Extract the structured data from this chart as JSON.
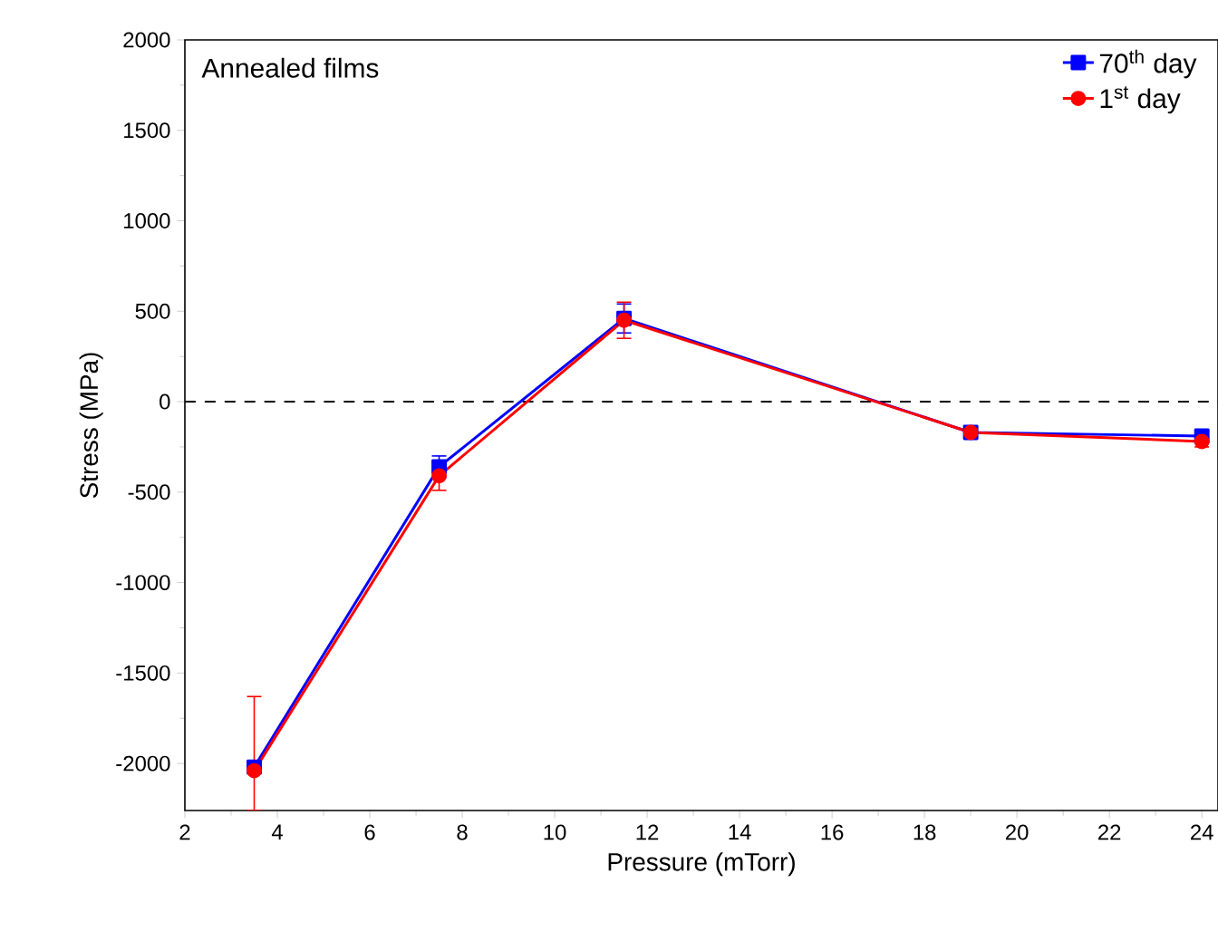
{
  "chart_data": {
    "type": "line",
    "xlabel": "Pressure (mTorr)",
    "ylabel": "Stress (MPa)",
    "x": [
      3.5,
      7.5,
      11.5,
      19,
      24
    ],
    "series": [
      {
        "name": "70$^{th}$ day",
        "color": "#0000ff",
        "marker": "square",
        "values": [
          -2020,
          -360,
          460,
          -170,
          -190
        ],
        "errors": [
          null,
          60,
          80,
          30,
          30
        ]
      },
      {
        "name": "1$^{st}$ day",
        "color": "#ff0000",
        "marker": "circle",
        "values": [
          -2040,
          -410,
          450,
          -170,
          -220
        ],
        "errors": [
          [
            -2260,
            -1630
          ],
          80,
          100,
          30,
          30
        ]
      }
    ],
    "xlim": [
      2,
      24.35
    ],
    "ylim": [
      -2260,
      2000
    ],
    "xticks": [
      2,
      4,
      6,
      8,
      10,
      12,
      14,
      16,
      18,
      20,
      22,
      24
    ],
    "yticks": [
      -2000,
      -1500,
      -1000,
      -500,
      0,
      500,
      1000,
      1500,
      2000
    ],
    "ref_lines": [
      {
        "axis": "y",
        "value": 0,
        "color": "#000000",
        "line_style": "dashed"
      }
    ],
    "annotations": [
      "Annealed films"
    ],
    "legend": "top right",
    "line_style": "solid"
  }
}
